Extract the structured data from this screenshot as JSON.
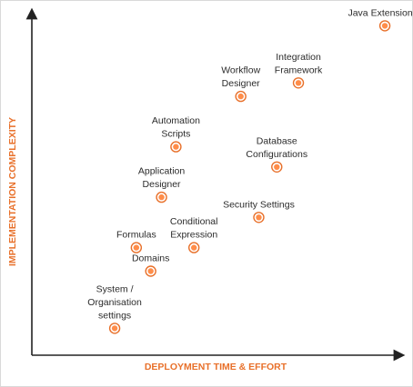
{
  "chart_data": {
    "type": "scatter",
    "xlabel": "DEPLOYMENT TIME & EFFORT",
    "ylabel": "IMPLEMENTATION COMPLEXITY",
    "xlim": [
      0,
      100
    ],
    "ylim": [
      0,
      100
    ],
    "grid": false,
    "legend": "none",
    "marker_color": "#e8702a",
    "marker_fill": "#ff8d4a",
    "axis_color": "#222222",
    "points": [
      {
        "name": "System / Organisation settings",
        "lines": [
          "System /",
          "Organisation",
          "settings"
        ],
        "x": 23,
        "y": 8
      },
      {
        "name": "Domains",
        "lines": [
          "Domains"
        ],
        "x": 33,
        "y": 25
      },
      {
        "name": "Formulas",
        "lines": [
          "Formulas"
        ],
        "x": 29,
        "y": 32
      },
      {
        "name": "Conditional Expression",
        "lines": [
          "Conditional",
          "Expression"
        ],
        "x": 45,
        "y": 32
      },
      {
        "name": "Application Designer",
        "lines": [
          "Application",
          "Designer"
        ],
        "x": 36,
        "y": 47
      },
      {
        "name": "Security Settings",
        "lines": [
          "Security Settings"
        ],
        "x": 63,
        "y": 41
      },
      {
        "name": "Automation Scripts",
        "lines": [
          "Automation",
          "Scripts"
        ],
        "x": 40,
        "y": 62
      },
      {
        "name": "Database Configurations",
        "lines": [
          "Database",
          "Configurations"
        ],
        "x": 68,
        "y": 56
      },
      {
        "name": "Workflow Designer",
        "lines": [
          "Workflow",
          "Designer"
        ],
        "x": 58,
        "y": 77
      },
      {
        "name": "Integration Framework",
        "lines": [
          "Integration",
          "Framework"
        ],
        "x": 74,
        "y": 81
      },
      {
        "name": "Java Extension",
        "lines": [
          "Java Extension"
        ],
        "x": 98,
        "y": 98
      }
    ]
  }
}
